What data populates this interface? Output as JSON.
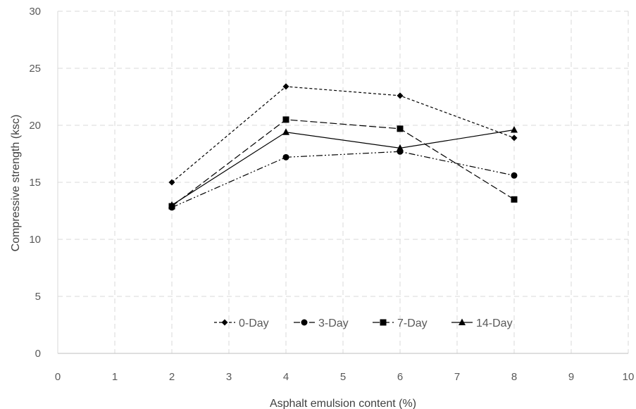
{
  "chart_data": {
    "type": "line",
    "xlabel": "Asphalt emulsion content (%)",
    "ylabel": "Compressive strength (ksc)",
    "xlim": [
      0,
      10
    ],
    "ylim": [
      0,
      30
    ],
    "xticks": [
      "0",
      "1",
      "2",
      "3",
      "4",
      "5",
      "6",
      "7",
      "8",
      "9",
      "10"
    ],
    "yticks": [
      "0",
      "5",
      "10",
      "15",
      "20",
      "25",
      "30"
    ],
    "grid": "dashed, major x and y",
    "legend_position": "inside-bottom-center",
    "x": [
      2,
      4,
      6,
      8
    ],
    "series": [
      {
        "name": "0-Day",
        "values": [
          15.0,
          23.4,
          22.6,
          18.9
        ],
        "marker": "diamond",
        "line_style": "short-dash",
        "color": "#000000"
      },
      {
        "name": "3-Day",
        "values": [
          12.8,
          17.2,
          17.7,
          15.6
        ],
        "marker": "circle",
        "line_style": "dash-dot-dot",
        "color": "#000000"
      },
      {
        "name": "7-Day",
        "values": [
          12.9,
          20.5,
          19.7,
          13.5
        ],
        "marker": "square",
        "line_style": "long-dash",
        "color": "#000000"
      },
      {
        "name": "14-Day",
        "values": [
          13.0,
          19.4,
          18.0,
          19.6
        ],
        "marker": "triangle",
        "line_style": "solid",
        "color": "#000000"
      }
    ]
  }
}
